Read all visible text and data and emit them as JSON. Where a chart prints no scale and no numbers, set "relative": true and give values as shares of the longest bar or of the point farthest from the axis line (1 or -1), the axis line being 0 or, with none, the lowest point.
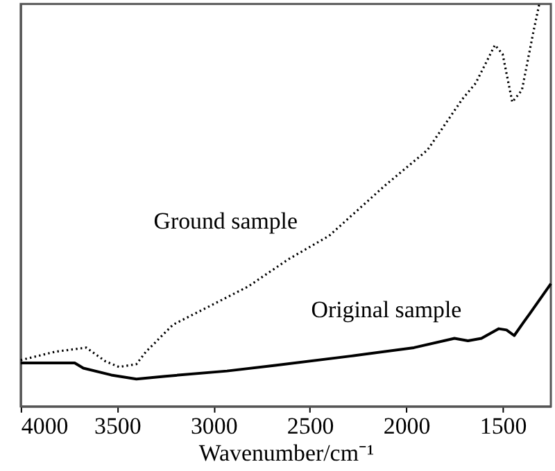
{
  "chart_data": {
    "type": "line",
    "relative": true,
    "xlabel": "Wavenumber/cm⁻¹",
    "xlim": [
      4000,
      1250
    ],
    "xticks": [
      4000,
      3500,
      3000,
      2500,
      2000,
      1500
    ],
    "grid": false,
    "series": [
      {
        "name": "Ground sample",
        "color": "#000000",
        "line_style": "dotted",
        "x": [
          4000,
          3820,
          3660,
          3560,
          3490,
          3400,
          3350,
          3210,
          3000,
          2820,
          2610,
          2400,
          2110,
          1890,
          1710,
          1640,
          1540,
          1500,
          1450,
          1400,
          1340,
          1310
        ],
        "values": [
          0.115,
          0.136,
          0.146,
          0.112,
          0.098,
          0.105,
          0.136,
          0.203,
          0.254,
          0.298,
          0.366,
          0.424,
          0.549,
          0.637,
          0.763,
          0.803,
          0.898,
          0.875,
          0.756,
          0.786,
          0.932,
          1.0
        ]
      },
      {
        "name": "Original sample",
        "color": "#000000",
        "line_style": "solid",
        "x": [
          4000,
          3720,
          3675,
          3530,
          3400,
          3250,
          2930,
          2680,
          2290,
          1960,
          1750,
          1680,
          1610,
          1520,
          1480,
          1440,
          1390,
          1360,
          1250
        ],
        "values": [
          0.108,
          0.108,
          0.095,
          0.078,
          0.068,
          0.075,
          0.088,
          0.102,
          0.125,
          0.146,
          0.169,
          0.163,
          0.169,
          0.193,
          0.19,
          0.176,
          0.21,
          0.23,
          0.305
        ]
      }
    ]
  }
}
